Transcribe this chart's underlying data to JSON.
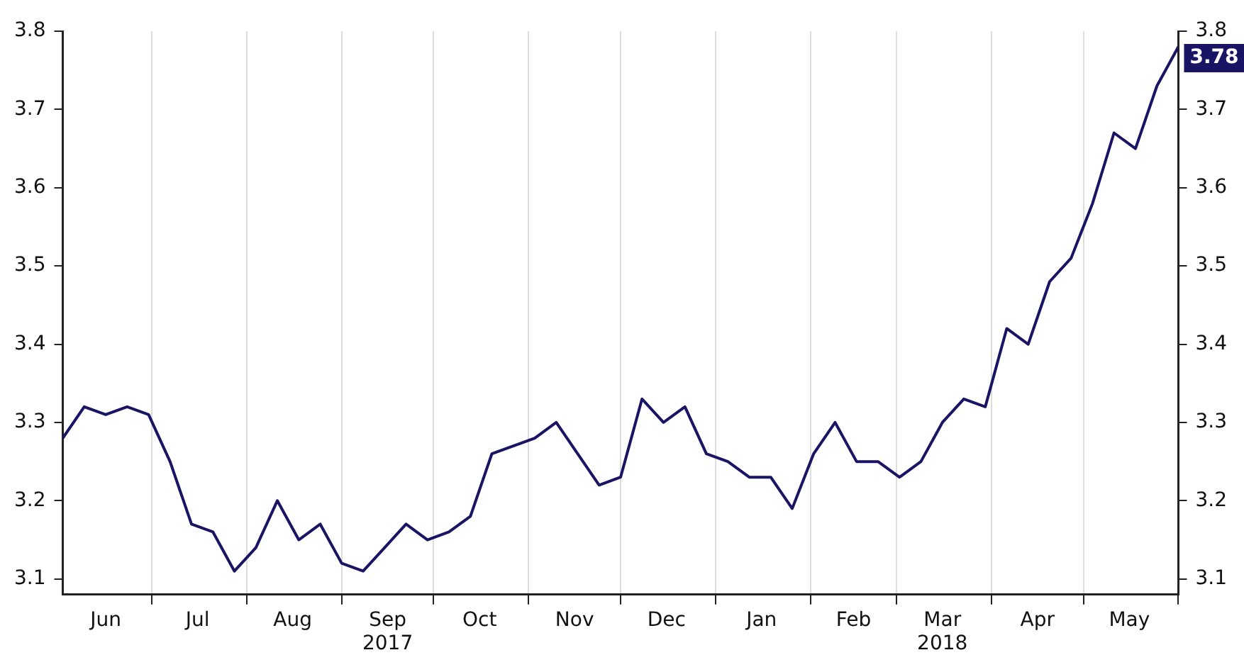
{
  "chart_data": {
    "type": "line",
    "x": [
      "2017-06-02",
      "2017-06-09",
      "2017-06-16",
      "2017-06-23",
      "2017-06-30",
      "2017-07-07",
      "2017-07-14",
      "2017-07-21",
      "2017-07-28",
      "2017-08-04",
      "2017-08-11",
      "2017-08-18",
      "2017-08-25",
      "2017-09-01",
      "2017-09-08",
      "2017-09-15",
      "2017-09-22",
      "2017-09-29",
      "2017-10-06",
      "2017-10-13",
      "2017-10-20",
      "2017-10-27",
      "2017-11-03",
      "2017-11-10",
      "2017-11-17",
      "2017-11-24",
      "2017-12-01",
      "2017-12-08",
      "2017-12-15",
      "2017-12-22",
      "2017-12-29",
      "2018-01-05",
      "2018-01-12",
      "2018-01-19",
      "2018-01-26",
      "2018-02-02",
      "2018-02-09",
      "2018-02-16",
      "2018-02-23",
      "2018-03-02",
      "2018-03-09",
      "2018-03-16",
      "2018-03-23",
      "2018-03-30",
      "2018-04-06",
      "2018-04-13",
      "2018-04-20",
      "2018-04-27",
      "2018-05-04",
      "2018-05-11",
      "2018-05-18",
      "2018-05-25",
      "2018-06-01"
    ],
    "series": [
      {
        "color": "#1a1464",
        "values": [
          3.28,
          3.32,
          3.31,
          3.32,
          3.31,
          3.25,
          3.17,
          3.16,
          3.11,
          3.14,
          3.2,
          3.15,
          3.17,
          3.12,
          3.11,
          3.14,
          3.17,
          3.15,
          3.16,
          3.18,
          3.26,
          3.27,
          3.28,
          3.3,
          3.26,
          3.22,
          3.23,
          3.33,
          3.3,
          3.32,
          3.26,
          3.25,
          3.23,
          3.23,
          3.19,
          3.26,
          3.3,
          3.25,
          3.25,
          3.23,
          3.25,
          3.3,
          3.33,
          3.32,
          3.42,
          3.4,
          3.48,
          3.51,
          3.58,
          3.67,
          3.65,
          3.73,
          3.78
        ],
        "value_labels": [
          null,
          null,
          null,
          null,
          null,
          null,
          null,
          null,
          null,
          null,
          null,
          null,
          null,
          null,
          null,
          null,
          null,
          null,
          null,
          null,
          null,
          null,
          null,
          null,
          null,
          null,
          null,
          null,
          null,
          null,
          null,
          null,
          null,
          null,
          null,
          null,
          null,
          null,
          null,
          null,
          null,
          null,
          null,
          null,
          null,
          null,
          null,
          null,
          null,
          null,
          null,
          null,
          "3.78"
        ]
      }
    ],
    "xlim": [
      "2017-06-02",
      "2018-06-01"
    ],
    "xticks": [
      {
        "value": "2017-06-16",
        "label": "Jun"
      },
      {
        "value": "2017-07-01",
        "label": null
      },
      {
        "value": "2017-07-16",
        "label": "Jul"
      },
      {
        "value": "2017-08-01",
        "label": null
      },
      {
        "value": "2017-08-16",
        "label": "Aug"
      },
      {
        "value": "2017-09-01",
        "label": null
      },
      {
        "value": "2017-09-16",
        "label": "Sep\n2017"
      },
      {
        "value": "2017-10-01",
        "label": null
      },
      {
        "value": "2017-10-16",
        "label": "Oct"
      },
      {
        "value": "2017-11-01",
        "label": null
      },
      {
        "value": "2017-11-16",
        "label": "Nov"
      },
      {
        "value": "2017-12-01",
        "label": null
      },
      {
        "value": "2017-12-16",
        "label": "Dec"
      },
      {
        "value": "2018-01-01",
        "label": null
      },
      {
        "value": "2018-01-16",
        "label": "Jan"
      },
      {
        "value": "2018-02-01",
        "label": null
      },
      {
        "value": "2018-02-15",
        "label": "Feb"
      },
      {
        "value": "2018-03-01",
        "label": null
      },
      {
        "value": "2018-03-16",
        "label": "Mar\n2018"
      },
      {
        "value": "2018-04-01",
        "label": null
      },
      {
        "value": "2018-04-16",
        "label": "Apr"
      },
      {
        "value": "2018-05-01",
        "label": null
      },
      {
        "value": "2018-05-16",
        "label": "May"
      },
      {
        "value": "2018-06-01",
        "label": null
      }
    ],
    "ylim": [
      3.08,
      3.8
    ],
    "yticks": [
      3.1,
      3.2,
      3.3,
      3.4,
      3.5,
      3.6,
      3.7,
      3.8
    ],
    "y2lim": [
      3.08,
      3.8
    ],
    "y2ticks": [
      3.1,
      3.2,
      3.3,
      3.4,
      3.5,
      3.6,
      3.7,
      3.8
    ],
    "grid": "x",
    "legend": false,
    "marker": "none",
    "line_style": "solid"
  }
}
